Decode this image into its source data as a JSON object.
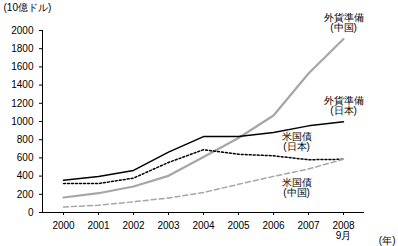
{
  "chart_data": {
    "type": "line",
    "categories": [
      "2000",
      "2001",
      "2002",
      "2003",
      "2004",
      "2005",
      "2006",
      "2007",
      "2008\n9月"
    ],
    "x_label": "(年)",
    "y_label": "(10億ドル)",
    "ylim": [
      0,
      2000
    ],
    "yticks": [
      0,
      200,
      400,
      600,
      800,
      1000,
      1200,
      1400,
      1600,
      1800,
      2000
    ],
    "grid": false,
    "series": [
      {
        "name": "外貨準備\n(中国)",
        "color": "#a6a6a6",
        "line_style": "solid",
        "values": [
          165,
          212,
          286,
          403,
          610,
          819,
          1066,
          1528,
          1906
        ]
      },
      {
        "name": "外貨準備\n(日本)",
        "color": "#000000",
        "line_style": "solid",
        "values": [
          355,
          395,
          462,
          663,
          834,
          834,
          880,
          952,
          996
        ]
      },
      {
        "name": "米国債\n(日本)",
        "color": "#000000",
        "line_style": "dotted",
        "values": [
          318,
          318,
          378,
          550,
          690,
          640,
          623,
          580,
          585
        ]
      },
      {
        "name": "米国債\n(中国)",
        "color": "#a6a6a6",
        "line_style": "dashed",
        "values": [
          60,
          80,
          118,
          160,
          220,
          310,
          397,
          478,
          585
        ]
      }
    ]
  }
}
